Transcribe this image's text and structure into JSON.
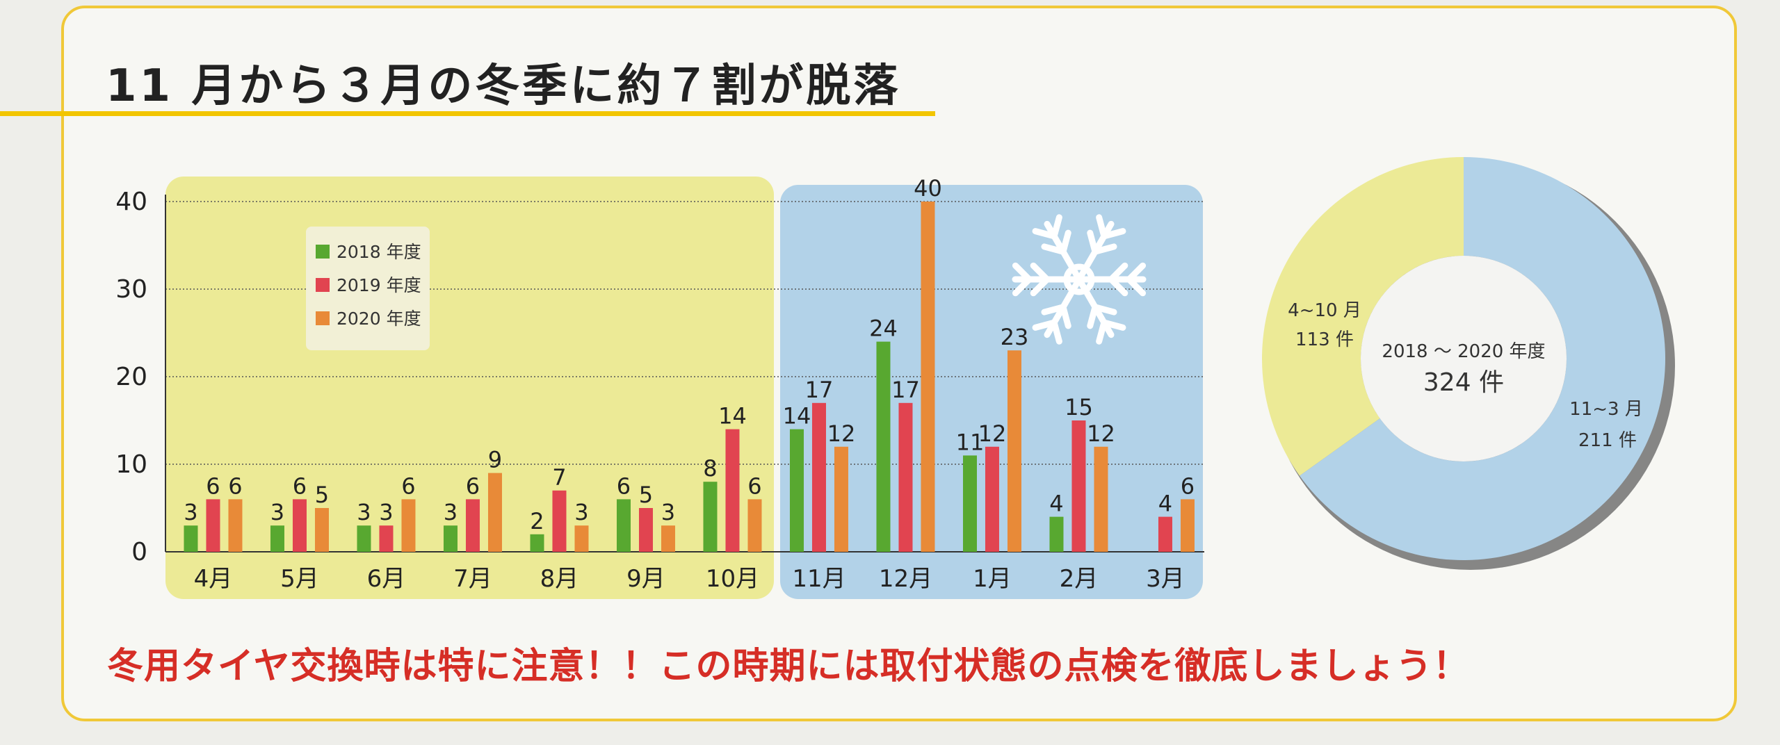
{
  "title": "11 月から３月の冬季に約７割が脱落",
  "footer": "冬用タイヤ交換時は特に注意！！この時期には取付状態の点検を徹底しましょう！",
  "colors": {
    "s2018": "#58a830",
    "s2019": "#e14450",
    "s2020": "#e88a38",
    "yellow_panel": "#ecea96",
    "blue_panel": "#b2d2e8"
  },
  "icons": [
    "snowflake-icon"
  ],
  "chart_data": [
    {
      "type": "bar",
      "categories": [
        "4月",
        "5月",
        "6月",
        "7月",
        "8月",
        "9月",
        "10月",
        "11月",
        "12月",
        "1月",
        "2月",
        "3月"
      ],
      "series": [
        {
          "name": "2018 年度",
          "values": [
            3,
            3,
            3,
            3,
            2,
            6,
            8,
            14,
            24,
            11,
            4,
            null
          ]
        },
        {
          "name": "2019 年度",
          "values": [
            6,
            6,
            3,
            6,
            7,
            5,
            14,
            17,
            17,
            12,
            15,
            4
          ]
        },
        {
          "name": "2020 年度",
          "values": [
            6,
            5,
            6,
            9,
            3,
            3,
            6,
            12,
            40,
            23,
            12,
            6
          ]
        }
      ],
      "yticks": [
        0,
        10,
        20,
        30,
        40
      ],
      "ylim": [
        0,
        40
      ],
      "legend": "top-left",
      "grid": true
    },
    {
      "type": "pie",
      "style": "donut",
      "center_label": "2018 ～ 2020 年度",
      "center_value": "324 件",
      "slices": [
        {
          "label": "4~10 月",
          "value_label": "113 件",
          "value": 113
        },
        {
          "label": "11~3 月",
          "value_label": "211 件",
          "value": 211
        }
      ]
    }
  ]
}
